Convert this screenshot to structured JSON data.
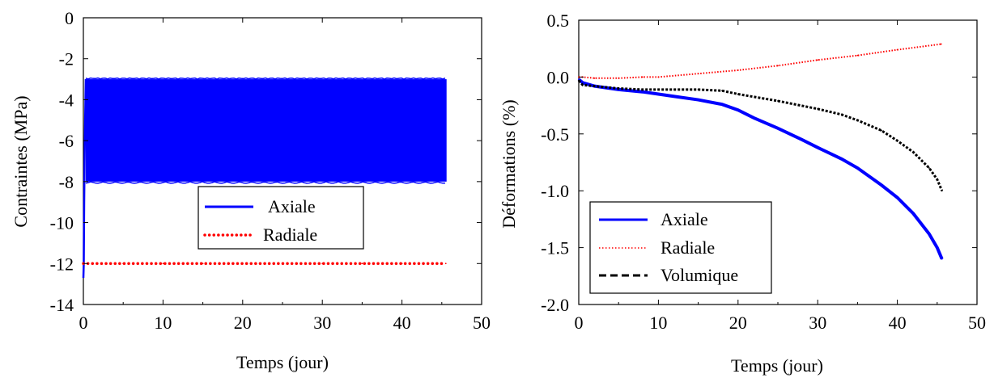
{
  "chart_data": [
    {
      "type": "line",
      "xlabel": "Temps (jour)",
      "ylabel": "Contraintes (MPa)",
      "xlim": [
        0,
        50
      ],
      "ylim": [
        -14,
        0
      ],
      "xticks": [
        "0",
        "10",
        "20",
        "30",
        "40",
        "50"
      ],
      "yticks": [
        "0",
        "-2",
        "-4",
        "-6",
        "-8",
        "-10",
        "-12",
        "-14"
      ],
      "legend_position": "center",
      "series": [
        {
          "name": "Axiale",
          "style": "solid",
          "color": "#0000ff",
          "description_values": {
            "initial_x": [
              0,
              0.05,
              0.1,
              0.15,
              0.2,
              0.3
            ],
            "initial_y": [
              -12.7,
              -12.0,
              -9.0,
              -7.0,
              -5.5,
              -3.0
            ],
            "cyclic_min": -8.0,
            "cyclic_max": -3.0,
            "x_end": 45.6
          }
        },
        {
          "name": "Radiale",
          "style": "dotted",
          "color": "#ff0000",
          "x": [
            0,
            5,
            10,
            15,
            20,
            25,
            30,
            35,
            40,
            45.5
          ],
          "y": [
            -12.0,
            -12.0,
            -12.0,
            -12.0,
            -12.0,
            -12.0,
            -12.0,
            -12.0,
            -12.0,
            -12.0
          ]
        }
      ]
    },
    {
      "type": "line",
      "xlabel": "Temps (jour)",
      "ylabel": "Déformations (%)",
      "xlim": [
        0,
        50
      ],
      "ylim": [
        -2.0,
        0.5
      ],
      "xticks": [
        "0",
        "10",
        "20",
        "30",
        "40",
        "50"
      ],
      "yticks": [
        "0.5",
        "0.0",
        "-0.5",
        "-1.0",
        "-1.5",
        "-2.0"
      ],
      "legend_position": "bottom-left",
      "series": [
        {
          "name": "Axiale",
          "style": "solid",
          "color": "#0000ff",
          "x": [
            0,
            0.5,
            2,
            5,
            8,
            10,
            12,
            15,
            18,
            20,
            22,
            25,
            28,
            30,
            33,
            35,
            38,
            40,
            42,
            44,
            45,
            45.6
          ],
          "y": [
            -0.02,
            -0.05,
            -0.08,
            -0.11,
            -0.13,
            -0.15,
            -0.17,
            -0.2,
            -0.24,
            -0.29,
            -0.36,
            -0.45,
            -0.55,
            -0.62,
            -0.72,
            -0.8,
            -0.95,
            -1.06,
            -1.2,
            -1.38,
            -1.5,
            -1.6
          ]
        },
        {
          "name": "Radiale",
          "style": "dotted",
          "color": "#ff0000",
          "x": [
            0,
            0.5,
            2,
            5,
            8,
            10,
            15,
            20,
            25,
            30,
            35,
            40,
            45.5
          ],
          "y": [
            0.0,
            0.0,
            -0.01,
            -0.01,
            0.0,
            0.0,
            0.03,
            0.06,
            0.1,
            0.15,
            0.19,
            0.24,
            0.29
          ]
        },
        {
          "name": "Volumique",
          "style": "dashed",
          "color": "#000000",
          "x": [
            0,
            0.5,
            2,
            5,
            8,
            10,
            12,
            15,
            18,
            20,
            25,
            30,
            33,
            35,
            38,
            40,
            42,
            44,
            45,
            45.6
          ],
          "y": [
            -0.03,
            -0.07,
            -0.08,
            -0.1,
            -0.11,
            -0.11,
            -0.11,
            -0.11,
            -0.12,
            -0.15,
            -0.21,
            -0.28,
            -0.33,
            -0.38,
            -0.47,
            -0.56,
            -0.66,
            -0.8,
            -0.9,
            -1.0
          ]
        }
      ]
    }
  ]
}
